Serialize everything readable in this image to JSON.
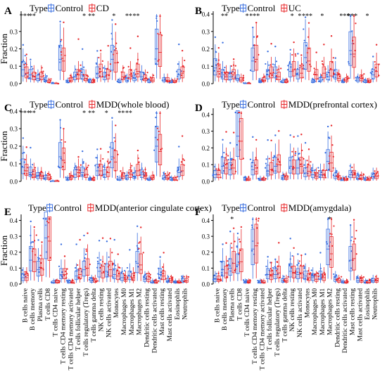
{
  "figure": {
    "legend_type_label": "Type",
    "group_control": "Control",
    "colors": {
      "control": "#3a6fe0",
      "case": "#e8282b"
    }
  },
  "cell_types": [
    "B cells naive",
    "B cells memory",
    "Plasma cells",
    "T cells CD8",
    "T cells CD4 naive",
    "T cells CD4 memory resting",
    "T cells CD4 memory activated",
    "T cells follicular helper",
    "T cells regulatory (Tregs)",
    "T cells gamma delta",
    "NK cells resting",
    "NK cells activated",
    "Monocytes",
    "Macrophages M0",
    "Macrophages M1",
    "Macrophages M2",
    "Dendritic cells resting",
    "Dendritic cells activated",
    "Mast cells resting",
    "Mast cells activated",
    "Eosinophils",
    "Neutrophils"
  ],
  "chart_data": [
    {
      "panel": "A",
      "type": "box",
      "case_label": "CD",
      "ylabel": "Fraction",
      "ylim": [
        0,
        0.4
      ],
      "yticks": [
        0.0,
        0.1,
        0.2,
        0.3
      ],
      "show_xticklabels": false,
      "series": [
        {
          "name": "Control",
          "medians": [
            0.08,
            0.05,
            0.03,
            0.02,
            0.0,
            0.14,
            0.01,
            0.04,
            0.05,
            0.01,
            0.06,
            0.04,
            0.14,
            0.01,
            0.02,
            0.03,
            0.04,
            0.01,
            0.2,
            0.02,
            0.01,
            0.05
          ]
        },
        {
          "name": "CD",
          "medians": [
            0.06,
            0.04,
            0.04,
            0.01,
            0.0,
            0.13,
            0.02,
            0.05,
            0.03,
            0.01,
            0.07,
            0.05,
            0.12,
            0.04,
            0.05,
            0.07,
            0.03,
            0.02,
            0.18,
            0.02,
            0.01,
            0.06
          ]
        }
      ],
      "significance": [
        "***",
        "**",
        "",
        "",
        "",
        "",
        "",
        "",
        "*",
        "**",
        "",
        "",
        "*",
        "",
        "**",
        "**",
        "",
        "",
        "",
        "",
        "",
        ""
      ]
    },
    {
      "panel": "B",
      "type": "box",
      "case_label": "UC",
      "ylim": [
        0,
        0.4
      ],
      "yticks": [
        0.0,
        0.1,
        0.2,
        0.3,
        0.4
      ],
      "show_xticklabels": false,
      "series": [
        {
          "name": "Control",
          "medians": [
            0.09,
            0.05,
            0.04,
            0.03,
            0.0,
            0.13,
            0.01,
            0.05,
            0.06,
            0.01,
            0.07,
            0.05,
            0.15,
            0.01,
            0.02,
            0.04,
            0.05,
            0.01,
            0.19,
            0.02,
            0.01,
            0.05
          ]
        },
        {
          "name": "UC",
          "medians": [
            0.07,
            0.04,
            0.05,
            0.02,
            0.0,
            0.14,
            0.02,
            0.06,
            0.04,
            0.01,
            0.08,
            0.06,
            0.13,
            0.05,
            0.06,
            0.08,
            0.03,
            0.02,
            0.17,
            0.03,
            0.01,
            0.07
          ]
        }
      ],
      "significance": [
        "",
        "**",
        "",
        "",
        "*",
        "***",
        "",
        "",
        "",
        "",
        "*",
        "*",
        "***",
        "",
        "*",
        "",
        "",
        "***",
        "***",
        "",
        "*",
        ""
      ]
    },
    {
      "panel": "C",
      "type": "box",
      "case_label": "MDD(whole blood)",
      "ylabel": "Fraction",
      "ylim": [
        0,
        0.4
      ],
      "yticks": [
        0.0,
        0.1,
        0.2,
        0.3,
        0.4
      ],
      "show_xticklabels": false,
      "series": [
        {
          "name": "Control",
          "medians": [
            0.08,
            0.05,
            0.03,
            0.02,
            0.0,
            0.14,
            0.01,
            0.04,
            0.05,
            0.01,
            0.06,
            0.04,
            0.14,
            0.01,
            0.02,
            0.03,
            0.04,
            0.01,
            0.2,
            0.02,
            0.01,
            0.05
          ]
        },
        {
          "name": "MDD(whole blood)",
          "medians": [
            0.06,
            0.04,
            0.03,
            0.02,
            0.0,
            0.12,
            0.02,
            0.05,
            0.04,
            0.01,
            0.06,
            0.05,
            0.11,
            0.03,
            0.04,
            0.06,
            0.03,
            0.02,
            0.17,
            0.02,
            0.01,
            0.06
          ]
        }
      ],
      "significance": [
        "***",
        "**",
        "",
        "",
        "",
        "",
        "",
        "",
        "*",
        "**",
        "",
        "*",
        "",
        "**",
        "**",
        "",
        "",
        "",
        "",
        "",
        "",
        ""
      ]
    },
    {
      "panel": "D",
      "type": "box",
      "case_label": "MDD(prefrontal cortex)",
      "ylim": [
        0,
        0.42
      ],
      "yticks": [
        0.0,
        0.1,
        0.2,
        0.3,
        0.4
      ],
      "show_xticklabels": false,
      "series": [
        {
          "name": "Control",
          "medians": [
            0.04,
            0.09,
            0.07,
            0.27,
            0.01,
            0.07,
            0.01,
            0.06,
            0.09,
            0.02,
            0.09,
            0.08,
            0.05,
            0.04,
            0.04,
            0.12,
            0.03,
            0.01,
            0.04,
            0.02,
            0.01,
            0.03
          ]
        },
        {
          "name": "MDD(prefrontal cortex)",
          "medians": [
            0.04,
            0.08,
            0.08,
            0.24,
            0.01,
            0.08,
            0.01,
            0.07,
            0.1,
            0.02,
            0.08,
            0.09,
            0.06,
            0.03,
            0.04,
            0.11,
            0.02,
            0.01,
            0.04,
            0.02,
            0.01,
            0.03
          ]
        }
      ],
      "significance": [
        "",
        "",
        "",
        "",
        "",
        "",
        "",
        "",
        "",
        "",
        "",
        "",
        "",
        "",
        "",
        "",
        "",
        "",
        "",
        "",
        "",
        ""
      ]
    },
    {
      "panel": "E",
      "type": "box",
      "case_label": "MDD(anterior cingulate cortex)",
      "ylabel": "Fraction",
      "ylim": [
        0,
        0.42
      ],
      "yticks": [
        0.0,
        0.1,
        0.2,
        0.3,
        0.4
      ],
      "show_xticklabels": true,
      "series": [
        {
          "name": "Control",
          "medians": [
            0.04,
            0.15,
            0.09,
            0.29,
            0.01,
            0.06,
            0.01,
            0.05,
            0.09,
            0.02,
            0.08,
            0.08,
            0.06,
            0.04,
            0.05,
            0.13,
            0.03,
            0.01,
            0.06,
            0.02,
            0.01,
            0.02
          ]
        },
        {
          "name": "MDD(anterior cingulate cortex)",
          "medians": [
            0.04,
            0.14,
            0.1,
            0.27,
            0.01,
            0.06,
            0.01,
            0.06,
            0.1,
            0.02,
            0.07,
            0.09,
            0.05,
            0.03,
            0.04,
            0.12,
            0.03,
            0.01,
            0.05,
            0.02,
            0.01,
            0.02
          ]
        }
      ],
      "significance": [
        "",
        "",
        "",
        "",
        "",
        "",
        "",
        "",
        "",
        "",
        "",
        "",
        "",
        "",
        "",
        "",
        "",
        "",
        "",
        "",
        "",
        ""
      ]
    },
    {
      "panel": "F",
      "type": "box",
      "case_label": "MDD(amygdala)",
      "ylim": [
        0,
        0.42
      ],
      "yticks": [
        0.0,
        0.1,
        0.2,
        0.3,
        0.4
      ],
      "show_xticklabels": true,
      "series": [
        {
          "name": "Control",
          "medians": [
            0.03,
            0.09,
            0.1,
            0.12,
            0.01,
            0.22,
            0.01,
            0.06,
            0.06,
            0.02,
            0.08,
            0.06,
            0.05,
            0.04,
            0.05,
            0.22,
            0.03,
            0.01,
            0.15,
            0.02,
            0.01,
            0.02
          ]
        },
        {
          "name": "MDD(amygdala)",
          "medians": [
            0.03,
            0.07,
            0.13,
            0.14,
            0.01,
            0.24,
            0.01,
            0.05,
            0.07,
            0.02,
            0.07,
            0.07,
            0.04,
            0.03,
            0.04,
            0.19,
            0.02,
            0.01,
            0.16,
            0.02,
            0.01,
            0.02
          ]
        }
      ],
      "significance": [
        "",
        "",
        "*",
        "",
        "",
        "",
        "",
        "",
        "",
        "",
        "",
        "",
        "",
        "",
        "",
        "*",
        "",
        "",
        "",
        "",
        "",
        ""
      ]
    }
  ]
}
